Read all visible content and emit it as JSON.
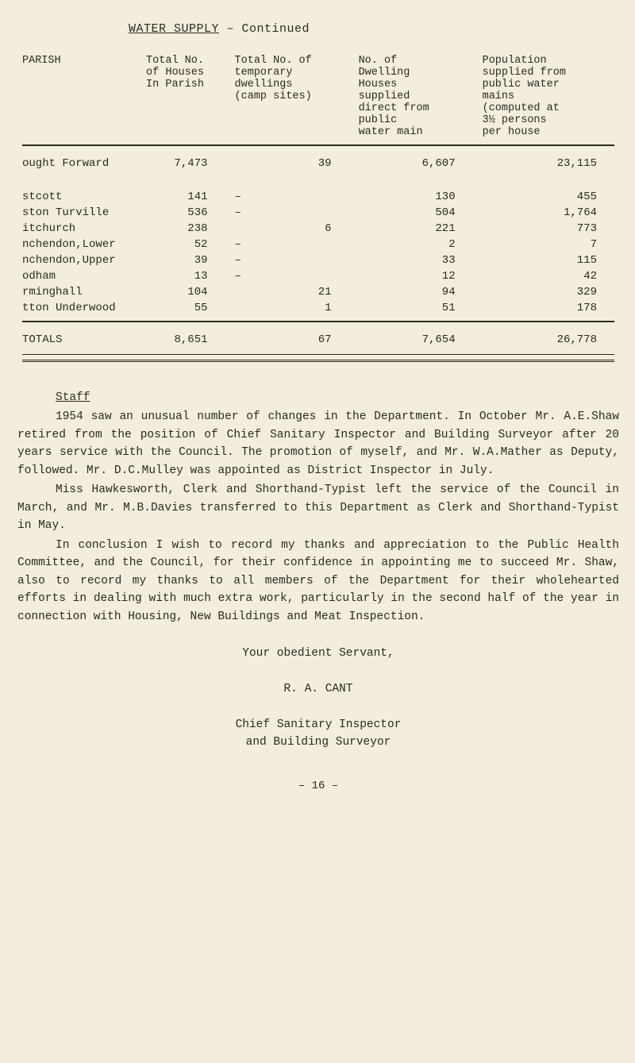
{
  "title_prefix": "WATER  SUPPLY",
  "title_suffix": " – Continued",
  "columns": {
    "c0": "PARISH",
    "c1": "Total No.\nof Houses\nIn Parish",
    "c2": "Total No. of\ntemporary\ndwellings\n(camp sites)",
    "c3": "No. of\nDwelling\nHouses\nsupplied\ndirect from\npublic\nwater main",
    "c4": "Population\nsupplied from\npublic water\nmains\n(computed at\n3½ persons\nper house"
  },
  "brought_forward": {
    "label": "ought Forward",
    "c1": "7,473",
    "c2": "39",
    "c3": "6,607",
    "c4": "23,115"
  },
  "rows": [
    {
      "c0": "stcott",
      "c1": "141",
      "c2": "–",
      "c3": "130",
      "c4": "455"
    },
    {
      "c0": "ston Turville",
      "c1": "536",
      "c2": "–",
      "c3": "504",
      "c4": "1,764"
    },
    {
      "c0": "itchurch",
      "c1": "238",
      "c2": "6",
      "c3": "221",
      "c4": "773"
    },
    {
      "c0": "nchendon,Lower",
      "c1": "52",
      "c2": "–",
      "c3": "2",
      "c4": "7"
    },
    {
      "c0": "nchendon,Upper",
      "c1": "39",
      "c2": "–",
      "c3": "33",
      "c4": "115"
    },
    {
      "c0": "odham",
      "c1": "13",
      "c2": "–",
      "c3": "12",
      "c4": "42"
    },
    {
      "c0": "rminghall",
      "c1": "104",
      "c2": "21",
      "c3": "94",
      "c4": "329"
    },
    {
      "c0": "tton Underwood",
      "c1": "55",
      "c2": "1",
      "c3": "51",
      "c4": "178"
    }
  ],
  "totals": {
    "label": "TOTALS",
    "c1": "8,651",
    "c2": "67",
    "c3": "7,654",
    "c4": "26,778"
  },
  "staff_heading": "Staff",
  "paragraphs": {
    "p1": "1954 saw an unusual number of changes in the Department.   In October Mr. A.E.Shaw retired from the position of Chief Sanitary Inspector and Building Surveyor after 20 years service with the Council.   The promotion of myself, and Mr. W.A.Mather as Deputy, followed.   Mr. D.C.Mulley was appointed as District Inspector in July.",
    "p2": "Miss Hawkesworth, Clerk and Shorthand-Typist left the service of the Council in March, and Mr. M.B.Davies transferred to this Department as Clerk and Shorthand-Typist in May.",
    "p3": "In conclusion I wish to record my thanks and appreciation to the Public Health Committee, and the Council, for their confidence in appointing me to succeed Mr. Shaw, also to record my thanks to all members of the Department for their wholehearted efforts in dealing with much extra work, particularly in the second half of the year in connection with Housing, New Buildings and Meat Inspection."
  },
  "closing": "Your obedient Servant,",
  "sig_name": "R. A. CANT",
  "sig_title1": "Chief Sanitary Inspector",
  "sig_title2": "and Building Surveyor",
  "page_number": "– 16 –",
  "style": {
    "background_color": "#f2eddc",
    "text_color": "#2b2b24",
    "font_family": "Courier New"
  }
}
